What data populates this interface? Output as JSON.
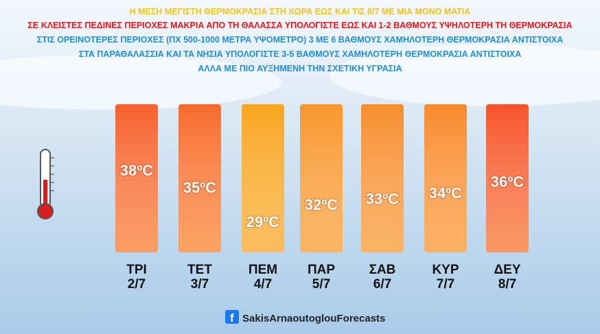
{
  "chart_data": {
    "type": "bar",
    "title": "Η ΜΕΣΗ ΜΕΓΙΣΤΗ ΘΕΡΜΟΚΡΑΣΙΑ ΣΤΗ ΧΩΡΑ ΕΩΣ ΚΑΙ ΤΙΣ 8/7 ΜΕ ΜΙΑ ΜΟΝΟ ΜΑΤΙΑ",
    "subtitle": "ΣΕ ΚΛΕΙΣΤΕΣ ΠΕΔΙΝΕΣ ΠΕΡΙΟΧΕΣ ΜΑΚΡΙΑ ΑΠΟ ΤΗ ΘΑΛΑΣΣΑ ΥΠΟΛΟΓΙΣΤΕ ΕΩΣ ΚΑΙ 1-2 ΒΑΘΜΟΥΣ ΥΨΗΛΟΤΕΡΗ ΤΗ ΘΕΡΜΟΚΡΑΣΙΑ",
    "notes": [
      "ΣΤΙΣ ΟΡΕΙΝΟΤΕΡΕΣ ΠΕΡΙΟΧΕΣ (ΠΧ 500-1000 ΜΕΤΡΑ ΥΨΟΜΕΤΡΟ) 3 ΜΕ 6 ΒΑΘΜΟΥΣ ΧΑΜΗΛΟΤΕΡΗ ΘΕΡΜΟΚΡΑΣΙΑ ΑΝΤΙΣΤΟΙΧΑ",
      "ΣΤΑ ΠΑΡΑΘΑΛΑΣΣΙΑ ΚΑΙ ΤΑ ΝΗΣΙΑ ΥΠΟΛΟΓΙΣΤΕ 3-5 ΒΑΘΜΟΥΣ ΧΑΜΗΛΟΤΕΡΗ ΘΕΡΜΟΚΡΑΣΙΑ ΑΝΤΙΣΤΟΙΧΑ",
      "ΑΛΛΑ ΜΕ ΠΙΟ ΑΥΞΗΜΕΝΗ ΤΗΝ ΣΧΕΤΙΚΗ ΥΓΡΑΣΙΑ"
    ],
    "categories": [
      "ΤΡΙ",
      "ΤΕΤ",
      "ΠΕΜ",
      "ΠΑΡ",
      "ΣΑΒ",
      "ΚΥΡ",
      "ΔΕΥ"
    ],
    "dates": [
      "2/7",
      "3/7",
      "4/7",
      "5/7",
      "6/7",
      "7/7",
      "8/7"
    ],
    "values": [
      38,
      35,
      29,
      32,
      33,
      34,
      36
    ],
    "value_labels": [
      "38ºC",
      "35ºC",
      "29ºC",
      "32ºC",
      "33ºC",
      "34ºC",
      "36ºC"
    ],
    "colors": [
      "#f7602c",
      "#f86a2a",
      "#f9a51e",
      "#f9952a",
      "#f88d2c",
      "#f98a2c",
      "#f7532a"
    ],
    "footer": "SakisArnaoutoglouForecasts"
  }
}
